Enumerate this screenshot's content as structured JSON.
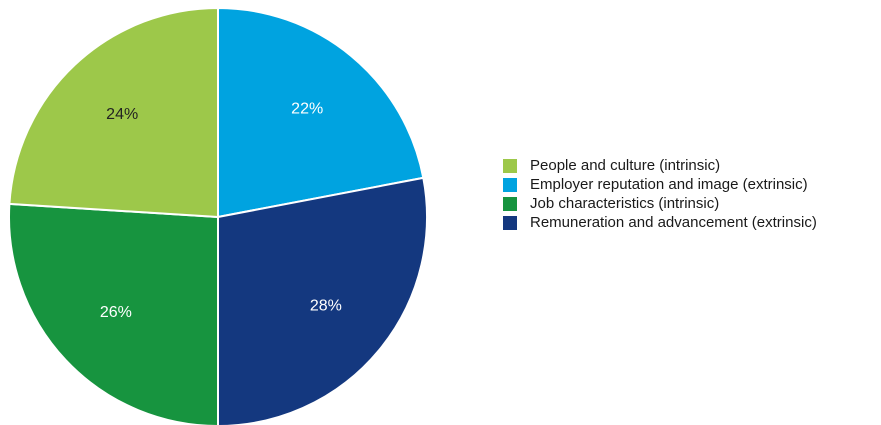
{
  "chart_data": {
    "type": "pie",
    "slices": [
      {
        "name": "Employer reputation and image (extrinsic)",
        "value": 22,
        "label": "22%",
        "color": "#00a3e0",
        "label_color": "#ffffff"
      },
      {
        "name": "Remuneration and advancement (extrinsic)",
        "value": 28,
        "label": "28%",
        "color": "#14387f",
        "label_color": "#ffffff"
      },
      {
        "name": "Job characteristics (intrinsic)",
        "value": 26,
        "label": "26%",
        "color": "#17943f",
        "label_color": "#ffffff"
      },
      {
        "name": "People and culture (intrinsic)",
        "value": 24,
        "label": "24%",
        "color": "#9dc84a",
        "label_color": "#222222"
      }
    ],
    "start_angle_deg": 0,
    "direction": "clockwise",
    "legend_position": "right",
    "legend": [
      {
        "label": "People and culture (intrinsic)",
        "color": "#9dc84a"
      },
      {
        "label": "Employer reputation and image (extrinsic)",
        "color": "#00a3e0"
      },
      {
        "label": "Job characteristics (intrinsic)",
        "color": "#17943f"
      },
      {
        "label": "Remuneration and advancement (extrinsic)",
        "color": "#14387f"
      }
    ]
  }
}
